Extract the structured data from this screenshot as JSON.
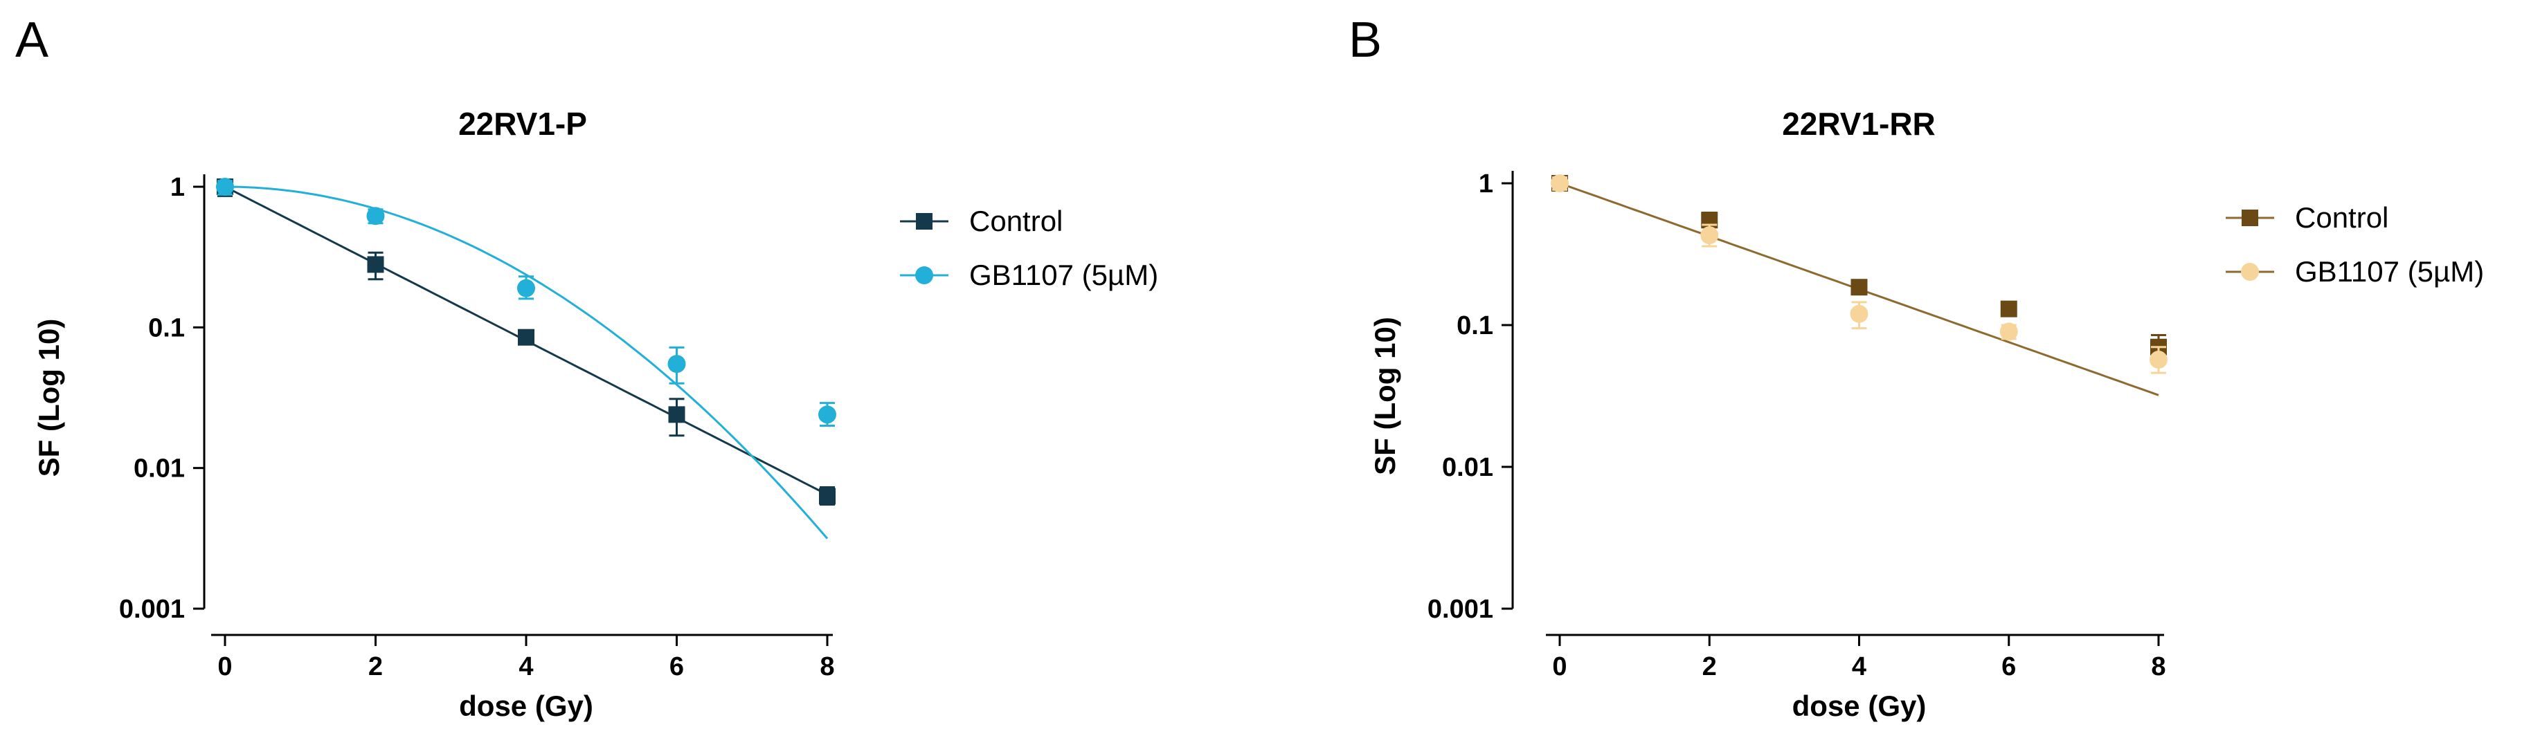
{
  "figure": {
    "panels": [
      "A",
      "B"
    ]
  },
  "colors": {
    "p_control": "#14394a",
    "p_gb1107": "#22b0d8",
    "rr_control": "#6b4914",
    "rr_gb1107": "#f7d59a",
    "rr_fit": "#8f6a2e"
  },
  "chart_data": [
    {
      "type": "scatter",
      "panel_letter": "A",
      "title": "22RV1-P",
      "xlabel": "dose (Gy)",
      "ylabel": "SF (Log 10)",
      "xscale": "linear",
      "yscale": "log",
      "xlim": [
        0,
        8
      ],
      "ylim": [
        0.001,
        1
      ],
      "xticks": [
        0,
        2,
        4,
        6,
        8
      ],
      "yticks": [
        1,
        0.1,
        0.01,
        0.001
      ],
      "ytick_labels": [
        "1",
        "0.1",
        "0.01",
        "0.001"
      ],
      "legend_position": "right",
      "series": [
        {
          "name": "Control",
          "marker": "square",
          "color_key": "p_control",
          "x": [
            0,
            2,
            4,
            6,
            8
          ],
          "y": [
            1.0,
            0.28,
            0.085,
            0.024,
            0.0063
          ],
          "err_low": [
            0.86,
            0.22,
            0.079,
            0.017,
            0.0055
          ],
          "err_high": [
            1.12,
            0.34,
            0.092,
            0.031,
            0.0073
          ],
          "fit": {
            "model": "linear-quadratic",
            "alpha": 0.63,
            "beta": 0.0
          }
        },
        {
          "name": "GB1107 (5µM)",
          "marker": "circle",
          "color_key": "p_gb1107",
          "x": [
            0,
            2,
            4,
            6,
            8
          ],
          "y": [
            1.0,
            0.62,
            0.19,
            0.055,
            0.024
          ],
          "err_low": [
            0.88,
            0.55,
            0.16,
            0.04,
            0.02
          ],
          "err_high": [
            1.1,
            0.69,
            0.23,
            0.072,
            0.029
          ],
          "fit": {
            "model": "linear-quadratic",
            "alpha": 0.0,
            "beta": 0.09
          }
        }
      ]
    },
    {
      "type": "scatter",
      "panel_letter": "B",
      "title": "22RV1-RR",
      "xlabel": "dose (Gy)",
      "ylabel": "SF (Log 10)",
      "xscale": "linear",
      "yscale": "log",
      "xlim": [
        0,
        8
      ],
      "ylim": [
        0.001,
        1
      ],
      "xticks": [
        0,
        2,
        4,
        6,
        8
      ],
      "yticks": [
        1,
        0.1,
        0.01,
        0.001
      ],
      "ytick_labels": [
        "1",
        "0.1",
        "0.01",
        "0.001"
      ],
      "legend_position": "right",
      "series": [
        {
          "name": "Control",
          "marker": "square",
          "color_key": "rr_control",
          "x": [
            0,
            2,
            4,
            6,
            8
          ],
          "y": [
            1.0,
            0.55,
            0.185,
            0.13,
            0.07
          ],
          "err_low": [
            0.9,
            0.49,
            0.17,
            0.12,
            0.058
          ],
          "err_high": [
            1.08,
            0.62,
            0.2,
            0.14,
            0.085
          ],
          "fit": null
        },
        {
          "name": "GB1107 (5µM)",
          "marker": "circle",
          "color_key": "rr_gb1107",
          "x": [
            0,
            2,
            4,
            6,
            8
          ],
          "y": [
            1.0,
            0.43,
            0.12,
            0.09,
            0.057
          ],
          "err_low": [
            0.9,
            0.36,
            0.095,
            0.08,
            0.046
          ],
          "err_high": [
            1.1,
            0.51,
            0.145,
            0.1,
            0.07
          ],
          "fit": {
            "model": "linear-quadratic",
            "alpha": 0.43,
            "beta": 0.0,
            "color_key": "rr_fit"
          }
        }
      ]
    }
  ]
}
